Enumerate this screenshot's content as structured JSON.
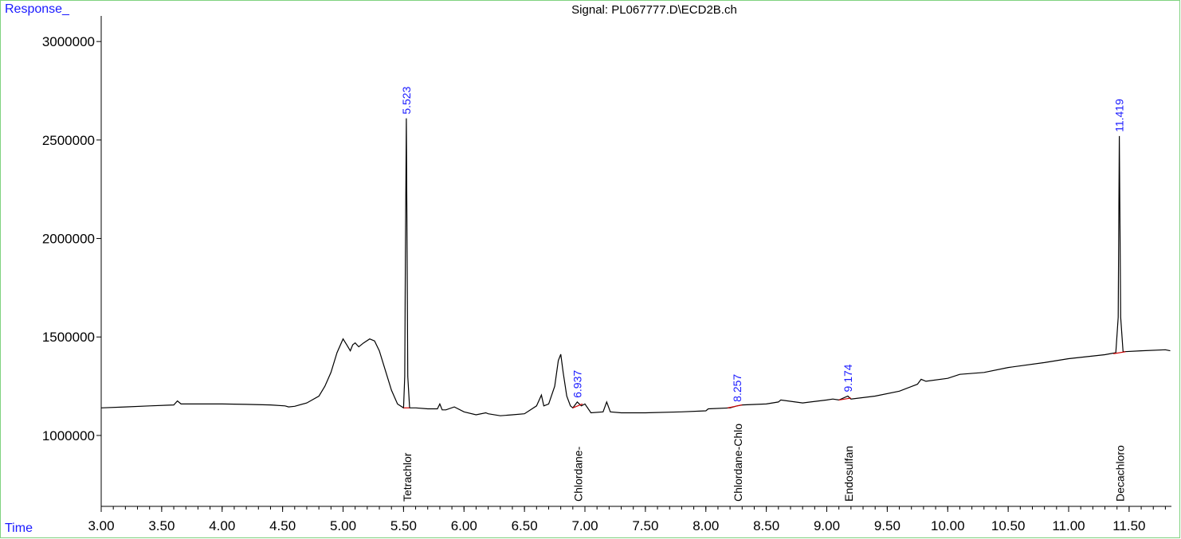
{
  "header": {
    "y_axis_label": "Response_",
    "x_axis_label": "Time",
    "signal_title": "Signal: PL067777.D\\ECD2B.ch"
  },
  "colors": {
    "trace": "#000000",
    "peak_label": "#1a1aff",
    "baseline": "#d00000",
    "frame": "#7fd27f"
  },
  "chart_data": {
    "type": "line",
    "title": "Signal: PL067777.D\\ECD2B.ch",
    "xlabel": "Time",
    "ylabel": "Response_",
    "xlim": [
      3.0,
      11.85
    ],
    "ylim": [
      640000,
      3130000
    ],
    "x_ticks": [
      3.0,
      3.5,
      4.0,
      4.5,
      5.0,
      5.5,
      6.0,
      6.5,
      7.0,
      7.5,
      8.0,
      8.5,
      9.0,
      9.5,
      10.0,
      10.5,
      11.0,
      11.5
    ],
    "x_tick_labels": [
      "3.00",
      "3.50",
      "4.00",
      "4.50",
      "5.00",
      "5.50",
      "6.00",
      "6.50",
      "7.00",
      "7.50",
      "8.00",
      "8.50",
      "9.00",
      "9.50",
      "10.00",
      "10.50",
      "11.00",
      "11.50"
    ],
    "y_ticks": [
      1000000,
      1500000,
      2000000,
      2500000,
      3000000
    ],
    "y_tick_labels": [
      "1000000",
      "1500000",
      "2000000",
      "2500000",
      "3000000"
    ],
    "grid": false,
    "series": [
      {
        "x": [
          3.0,
          3.2,
          3.4,
          3.6,
          3.63,
          3.66,
          3.75,
          4.0,
          4.2,
          4.4,
          4.52,
          4.55,
          4.6,
          4.7,
          4.8,
          4.85,
          4.9,
          4.95,
          5.0,
          5.03,
          5.06,
          5.08,
          5.1,
          5.13,
          5.17,
          5.22,
          5.26,
          5.3,
          5.35,
          5.4,
          5.45,
          5.5,
          5.51,
          5.515,
          5.523,
          5.53,
          5.535,
          5.55,
          5.6,
          5.7,
          5.78,
          5.8,
          5.82,
          5.85,
          5.92,
          6.0,
          6.1,
          6.18,
          6.2,
          6.3,
          6.4,
          6.5,
          6.6,
          6.64,
          6.66,
          6.7,
          6.75,
          6.78,
          6.8,
          6.82,
          6.85,
          6.88,
          6.9,
          6.937,
          6.97,
          7.0,
          7.05,
          7.15,
          7.18,
          7.21,
          7.3,
          7.5,
          7.8,
          8.0,
          8.02,
          8.2,
          8.257,
          8.3,
          8.5,
          8.6,
          8.62,
          8.8,
          9.0,
          9.05,
          9.1,
          9.174,
          9.2,
          9.4,
          9.6,
          9.75,
          9.78,
          9.82,
          10.0,
          10.1,
          10.3,
          10.5,
          10.8,
          11.0,
          11.3,
          11.39,
          11.41,
          11.419,
          11.43,
          11.45,
          11.6,
          11.8,
          11.84
        ],
        "y": [
          1140000,
          1145000,
          1150000,
          1155000,
          1175000,
          1160000,
          1160000,
          1160000,
          1158000,
          1155000,
          1150000,
          1145000,
          1148000,
          1165000,
          1200000,
          1250000,
          1320000,
          1420000,
          1490000,
          1460000,
          1430000,
          1460000,
          1470000,
          1450000,
          1470000,
          1490000,
          1480000,
          1430000,
          1330000,
          1230000,
          1160000,
          1140000,
          1300000,
          1900000,
          2610000,
          1900000,
          1300000,
          1140000,
          1140000,
          1135000,
          1135000,
          1160000,
          1130000,
          1130000,
          1145000,
          1120000,
          1105000,
          1115000,
          1110000,
          1100000,
          1105000,
          1110000,
          1150000,
          1205000,
          1150000,
          1160000,
          1250000,
          1380000,
          1412000,
          1320000,
          1200000,
          1150000,
          1140000,
          1170000,
          1150000,
          1160000,
          1115000,
          1120000,
          1170000,
          1120000,
          1115000,
          1115000,
          1120000,
          1125000,
          1135000,
          1140000,
          1150000,
          1155000,
          1160000,
          1170000,
          1180000,
          1165000,
          1180000,
          1185000,
          1180000,
          1200000,
          1185000,
          1200000,
          1225000,
          1260000,
          1285000,
          1275000,
          1290000,
          1310000,
          1320000,
          1345000,
          1370000,
          1390000,
          1410000,
          1420000,
          1600000,
          2520000,
          1600000,
          1425000,
          1430000,
          1435000,
          1430000
        ]
      }
    ],
    "peaks": [
      {
        "rt": 5.523,
        "label": "5.523",
        "height": 2610000,
        "compound": "Tetrachlor"
      },
      {
        "rt": 6.937,
        "label": "6.937",
        "height": 1170000,
        "compound": "Chlordane-"
      },
      {
        "rt": 8.257,
        "label": "8.257",
        "height": 1150000,
        "compound": "Chlordane-Chlo"
      },
      {
        "rt": 9.174,
        "label": "9.174",
        "height": 1200000,
        "compound": "Endosulfan"
      },
      {
        "rt": 11.419,
        "label": "11.419",
        "height": 2520000,
        "compound": "Decachloro"
      }
    ],
    "baselines": [
      {
        "x": [
          5.5,
          5.55
        ],
        "y": [
          1140000,
          1140000
        ]
      },
      {
        "x": [
          6.9,
          6.98
        ],
        "y": [
          1140000,
          1160000
        ]
      },
      {
        "x": [
          8.18,
          8.3
        ],
        "y": [
          1140000,
          1155000
        ]
      },
      {
        "x": [
          9.1,
          9.2
        ],
        "y": [
          1180000,
          1190000
        ]
      },
      {
        "x": [
          11.37,
          11.47
        ],
        "y": [
          1415000,
          1425000
        ]
      }
    ]
  }
}
